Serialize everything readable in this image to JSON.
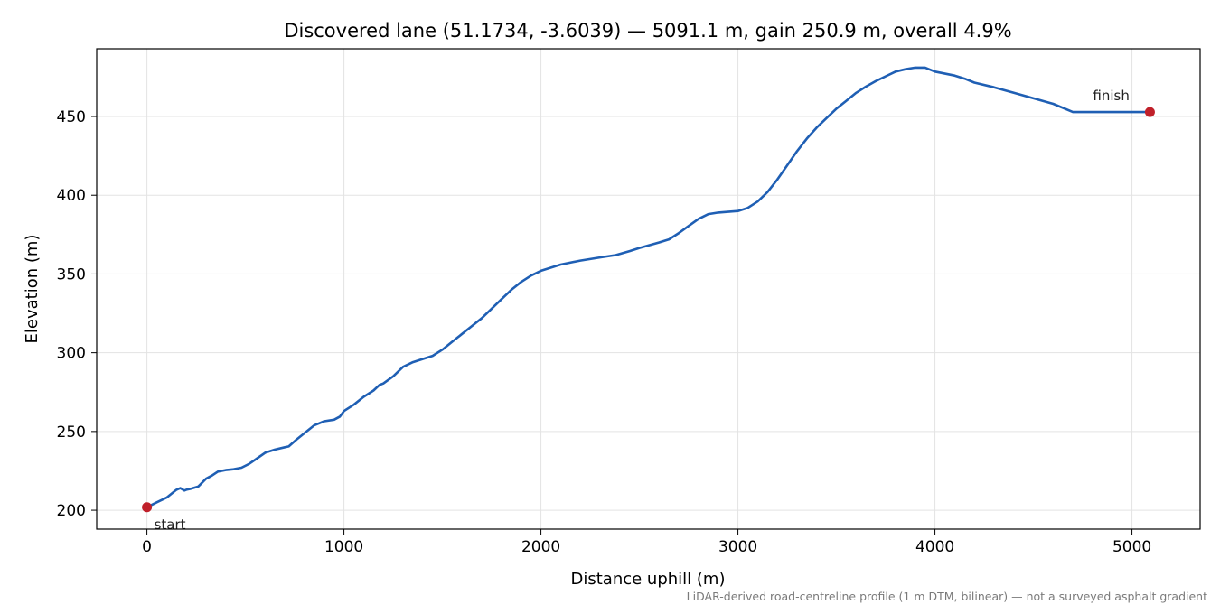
{
  "chart_data": {
    "type": "line",
    "title": "Discovered lane (51.1734, -3.6039) — 5091.1 m, gain 250.9 m, overall 4.9%",
    "xlabel": "Distance uphill (m)",
    "ylabel": "Elevation (m)",
    "xlim": [
      -255,
      5346
    ],
    "ylim": [
      188,
      493
    ],
    "xticks": [
      0,
      1000,
      2000,
      3000,
      4000,
      5000
    ],
    "yticks": [
      200,
      250,
      300,
      350,
      400,
      450
    ],
    "grid": true,
    "series": [
      {
        "color": "#1f5fb4",
        "x": [
          0,
          50,
          100,
          130,
          150,
          170,
          190,
          200,
          220,
          260,
          300,
          330,
          360,
          400,
          440,
          480,
          520,
          560,
          600,
          650,
          700,
          720,
          760,
          800,
          850,
          900,
          950,
          980,
          1000,
          1050,
          1100,
          1150,
          1180,
          1200,
          1250,
          1300,
          1350,
          1400,
          1450,
          1500,
          1550,
          1600,
          1650,
          1700,
          1750,
          1800,
          1850,
          1900,
          1950,
          2000,
          2100,
          2200,
          2300,
          2380,
          2450,
          2500,
          2600,
          2650,
          2700,
          2750,
          2800,
          2850,
          2900,
          3000,
          3050,
          3100,
          3150,
          3200,
          3250,
          3300,
          3350,
          3400,
          3450,
          3500,
          3550,
          3600,
          3650,
          3700,
          3750,
          3800,
          3850,
          3900,
          3950,
          4000,
          4100,
          4150,
          4200,
          4300,
          4400,
          4500,
          4600,
          4700,
          4800,
          4900,
          5000,
          5091
        ],
        "y": [
          201.9,
          205,
          208,
          211,
          213,
          214,
          212.5,
          213,
          213.5,
          215,
          220,
          222,
          224.5,
          225.5,
          226,
          227,
          229.5,
          233,
          236.5,
          238.5,
          240,
          240.5,
          245,
          249,
          254,
          256.5,
          257.5,
          259.5,
          263,
          267,
          272,
          276,
          279.5,
          280.5,
          285,
          291,
          294,
          296,
          298,
          302,
          307,
          312,
          317,
          322,
          328,
          334,
          340,
          345,
          349,
          352,
          356,
          358.5,
          360.5,
          362,
          364.5,
          366.5,
          370,
          372,
          376,
          380.5,
          385,
          388,
          389,
          390,
          392,
          396,
          402,
          410,
          419,
          428,
          436,
          443,
          449,
          455,
          460,
          465,
          469,
          472.5,
          475.5,
          478.5,
          480,
          481,
          481,
          478.5,
          476,
          474,
          471.5,
          468.5,
          465,
          461.5,
          458,
          452.8,
          452.8,
          452.8,
          452.8,
          452.8
        ]
      }
    ],
    "points": [
      {
        "x": 0,
        "y": 201.9,
        "label": "start",
        "color": "#c0202a"
      },
      {
        "x": 5091.1,
        "y": 452.8,
        "label": "finish",
        "color": "#c0202a"
      }
    ],
    "footnote": "LiDAR-derived road-centreline profile (1 m DTM, bilinear) — not a surveyed asphalt gradient"
  }
}
